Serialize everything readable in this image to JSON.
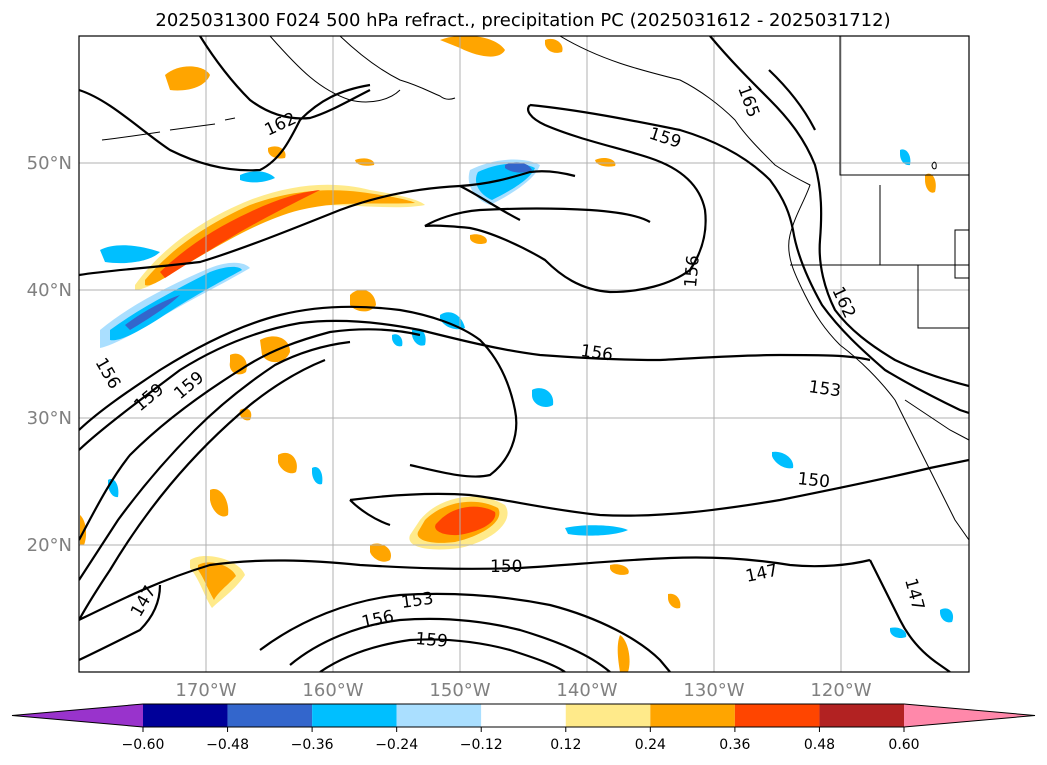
{
  "title": "2025031300 F024 500 hPa refract., precipitation PC (2025031612 - 2025031712)",
  "lat_labels": [
    "50°N",
    "40°N",
    "30°N",
    "20°N"
  ],
  "lon_labels": [
    "170°W",
    "160°W",
    "150°W",
    "140°W",
    "130°W",
    "120°W"
  ],
  "contour_labels": [
    "162",
    "159",
    "165",
    "156",
    "162",
    "156",
    "153",
    "150",
    "156",
    "159",
    "159",
    "147",
    "150",
    "153",
    "156",
    "159",
    "147",
    "147"
  ],
  "colorbar": {
    "ticks": [
      "−0.60",
      "−0.48",
      "−0.36",
      "−0.24",
      "−0.12",
      "0.12",
      "0.24",
      "0.36",
      "0.48",
      "0.60"
    ],
    "colors": [
      "#9933cc",
      "#000099",
      "#3366cc",
      "#00bfff",
      "#aadfff",
      "#ffffff",
      "#ffea8a",
      "#ffa500",
      "#ff4500",
      "#b22222",
      "#ff88aa"
    ]
  }
}
